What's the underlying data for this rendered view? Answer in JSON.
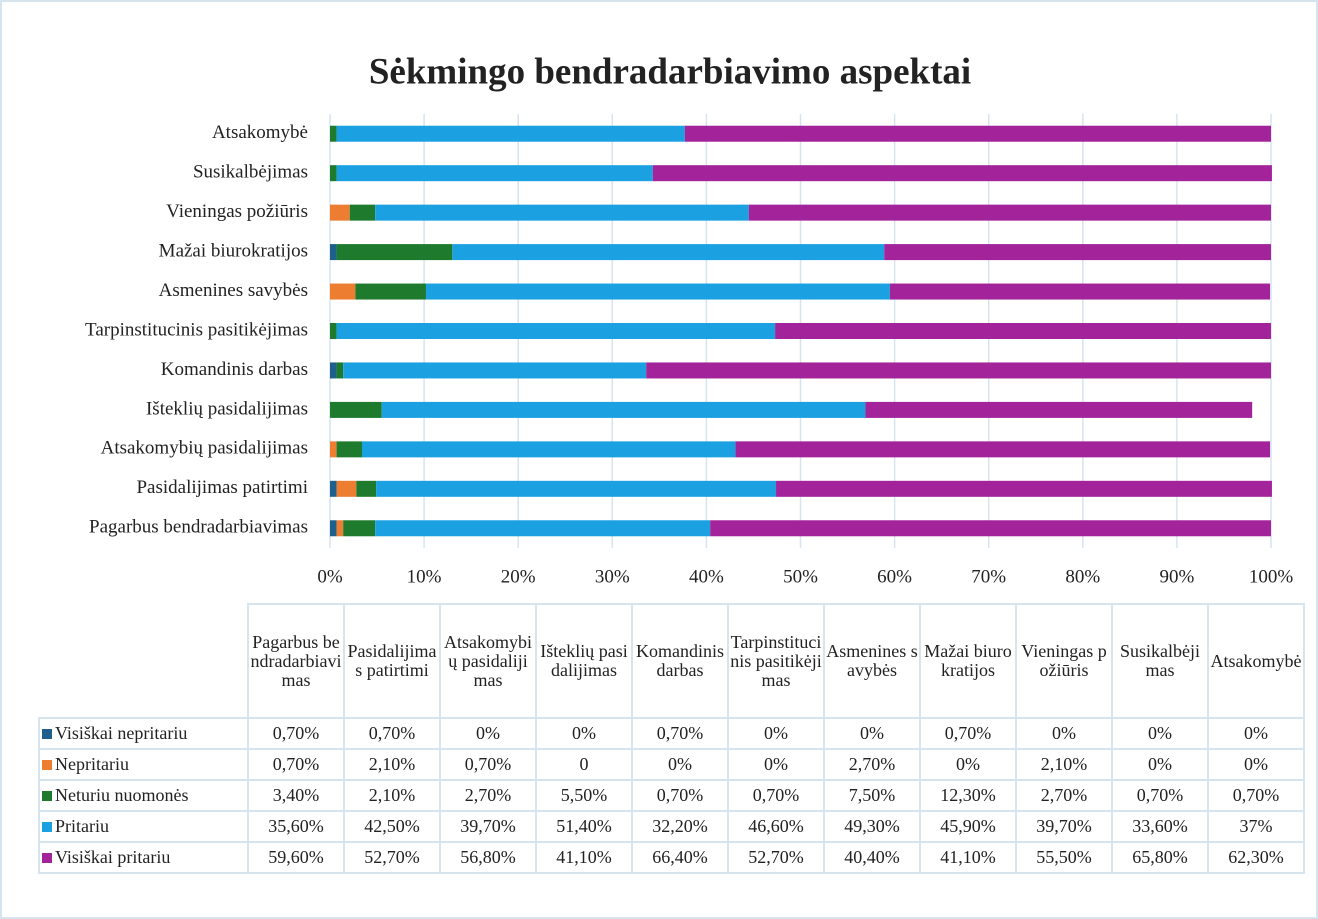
{
  "chart_data": {
    "type": "stacked_barh",
    "title": "Sėkmingo bendradarbiavimo aspektai",
    "categories": [
      "Pagarbus bendradarbiavimas",
      "Pasidalijimas patirtimi",
      "Atsakomybių pasidalijimas",
      "Išteklių pasidalijimas",
      "Komandinis darbas",
      "Tarpinstitucinis pasitikėjimas",
      "Asmenines savybės",
      "Mažai biurokratijos",
      "Vieningas požiūris",
      "Susikalbėjimas",
      "Atsakomybė"
    ],
    "series": [
      {
        "name": "Visiškai nepritariu",
        "color": "#1f5f8b",
        "values": [
          0.7,
          0.7,
          0,
          0,
          0.7,
          0,
          0,
          0.7,
          0,
          0,
          0
        ],
        "value_labels": [
          "0,70%",
          "0,70%",
          "0%",
          "0%",
          "0,70%",
          "0%",
          "0%",
          "0,70%",
          "0%",
          "0%",
          "0%"
        ]
      },
      {
        "name": "Nepritariu",
        "color": "#ed7d31",
        "values": [
          0.7,
          2.1,
          0.7,
          0,
          0,
          0,
          2.7,
          0,
          2.1,
          0,
          0
        ],
        "value_labels": [
          "0,70%",
          "2,10%",
          "0,70%",
          "0",
          "0%",
          "0%",
          "2,70%",
          "0%",
          "2,10%",
          "0%",
          "0%"
        ]
      },
      {
        "name": "Neturiu nuomonės",
        "color": "#1e7b2e",
        "values": [
          3.4,
          2.1,
          2.7,
          5.5,
          0.7,
          0.7,
          7.5,
          12.3,
          2.7,
          0.7,
          0.7
        ],
        "value_labels": [
          "3,40%",
          "2,10%",
          "2,70%",
          "5,50%",
          "0,70%",
          "0,70%",
          "7,50%",
          "12,30%",
          "2,70%",
          "0,70%",
          "0,70%"
        ]
      },
      {
        "name": "Pritariu",
        "color": "#1ba1e2",
        "values": [
          35.6,
          42.5,
          39.7,
          51.4,
          32.2,
          46.6,
          49.3,
          45.9,
          39.7,
          33.6,
          37
        ],
        "value_labels": [
          "35,60%",
          "42,50%",
          "39,70%",
          "51,40%",
          "32,20%",
          "46,60%",
          "49,30%",
          "45,90%",
          "39,70%",
          "33,60%",
          "37%"
        ]
      },
      {
        "name": "Visiškai pritariu",
        "color": "#a2239a",
        "values": [
          59.6,
          52.7,
          56.8,
          41.1,
          66.4,
          52.7,
          40.4,
          41.1,
          55.5,
          65.8,
          62.3
        ],
        "value_labels": [
          "59,60%",
          "52,70%",
          "56,80%",
          "41,10%",
          "66,40%",
          "52,70%",
          "40,40%",
          "41,10%",
          "55,50%",
          "65,80%",
          "62,30%"
        ]
      }
    ],
    "xlim": [
      0,
      100
    ],
    "xticks": [
      {
        "value": 0,
        "label": "0%"
      },
      {
        "value": 10,
        "label": "10%"
      },
      {
        "value": 20,
        "label": "20%"
      },
      {
        "value": 30,
        "label": "30%"
      },
      {
        "value": 40,
        "label": "40%"
      },
      {
        "value": 50,
        "label": "50%"
      },
      {
        "value": 60,
        "label": "60%"
      },
      {
        "value": 70,
        "label": "70%"
      },
      {
        "value": 80,
        "label": "80%"
      },
      {
        "value": 90,
        "label": "90%"
      },
      {
        "value": 100,
        "label": "100%"
      }
    ],
    "grid": true
  }
}
